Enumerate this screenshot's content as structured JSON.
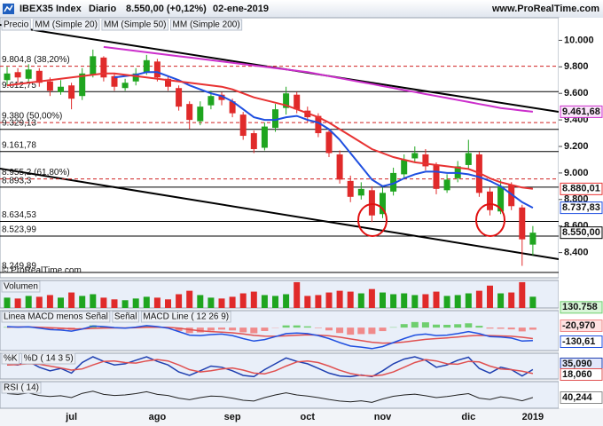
{
  "header": {
    "title": "IBEX35 Index",
    "period": "Diario",
    "quote": "8.550,00 (+0,12%)",
    "date": "02-ene-2019",
    "site": "www.ProRealTime.com"
  },
  "chart_data": [
    {
      "type": "candlestick",
      "legend": "Precio",
      "copyright": "© ProRealTime.com",
      "categories": [
        null,
        null,
        null,
        null,
        null,
        null,
        "jul",
        null,
        null,
        null,
        null,
        null,
        null,
        null,
        "ago",
        null,
        null,
        null,
        null,
        null,
        null,
        "sep",
        null,
        null,
        null,
        null,
        null,
        null,
        "oct",
        null,
        null,
        null,
        null,
        null,
        null,
        "nov",
        null,
        null,
        null,
        null,
        null,
        null,
        null,
        "dic",
        null,
        null,
        null,
        null,
        null,
        "2019"
      ],
      "open": [
        9700,
        9760,
        9710,
        9770,
        9690,
        9610,
        9660,
        9580,
        9740,
        9870,
        9730,
        9640,
        9690,
        9760,
        9840,
        9710,
        9640,
        9520,
        9390,
        9510,
        9590,
        9540,
        9440,
        9300,
        9190,
        9340,
        9490,
        9590,
        9470,
        9430,
        9310,
        9140,
        8940,
        8830,
        8870,
        8690,
        8860,
        8990,
        9110,
        9140,
        9060,
        8870,
        8960,
        9060,
        9140,
        8860,
        8710,
        8910,
        8740,
        8460
      ],
      "high": [
        9800,
        9790,
        9820,
        9790,
        9720,
        9700,
        9680,
        9790,
        9930,
        9880,
        9750,
        9710,
        9790,
        9890,
        9860,
        9730,
        9660,
        9540,
        9540,
        9620,
        9610,
        9560,
        9460,
        9320,
        9380,
        9520,
        9650,
        9610,
        9500,
        9450,
        9330,
        9170,
        8980,
        8930,
        8900,
        8890,
        9040,
        9140,
        9200,
        9180,
        9080,
        8990,
        9090,
        9250,
        9160,
        8890,
        8950,
        8930,
        8760,
        8600
      ],
      "low": [
        9660,
        9680,
        9690,
        9650,
        9580,
        9590,
        9480,
        9550,
        9720,
        9690,
        9620,
        9620,
        9660,
        9740,
        9690,
        9620,
        9470,
        9330,
        9360,
        9480,
        9510,
        9420,
        9250,
        9150,
        9170,
        9310,
        9440,
        9450,
        9380,
        9270,
        9120,
        8920,
        8780,
        8800,
        8630,
        8660,
        8830,
        8960,
        9080,
        9020,
        8840,
        8850,
        8930,
        9030,
        8820,
        8680,
        8690,
        8720,
        8300,
        8380
      ],
      "close": [
        9750,
        9720,
        9780,
        9680,
        9620,
        9650,
        9560,
        9750,
        9880,
        9720,
        9650,
        9680,
        9750,
        9850,
        9720,
        9650,
        9500,
        9400,
        9500,
        9580,
        9550,
        9450,
        9280,
        9180,
        9350,
        9480,
        9600,
        9480,
        9420,
        9300,
        9150,
        8950,
        8820,
        8880,
        8680,
        8850,
        9000,
        9100,
        9150,
        9050,
        8880,
        8950,
        9050,
        9150,
        8850,
        8720,
        8900,
        8750,
        8500,
        8550
      ],
      "last_label": "8.550,00",
      "up_color": "#1fa51f",
      "down_color": "#e02a2a",
      "ylim": [
        8210,
        10170
      ],
      "yticks": [
        {
          "value": 8400,
          "label": "8.400"
        },
        {
          "value": 8600,
          "label": "8.600"
        },
        {
          "value": 8800,
          "label": "8.800"
        },
        {
          "value": 9000,
          "label": "9.000"
        },
        {
          "value": 9200,
          "label": "9.200"
        },
        {
          "value": 9400,
          "label": "9.400"
        },
        {
          "value": 9600,
          "label": "9.600"
        },
        {
          "value": 9800,
          "label": "9.800"
        },
        {
          "value": 10000,
          "label": "10.000"
        }
      ],
      "levels": [
        {
          "value": 9804.8,
          "label": "9.804,8 (38,20%)",
          "style": "dashed"
        },
        {
          "value": 9612.75,
          "label": "9.612,75",
          "style": "solid"
        },
        {
          "value": 9380,
          "label": "9.380 (50,00%)",
          "style": "dashed"
        },
        {
          "value": 9329.13,
          "label": "9.329,13",
          "style": "solid"
        },
        {
          "value": 9161.78,
          "label": "9.161,78",
          "style": "solid"
        },
        {
          "value": 8955.2,
          "label": "8.955,2 (61,80%)",
          "style": "dashed"
        },
        {
          "value": 8893.3,
          "label": "8.893,3",
          "style": "solid"
        },
        {
          "value": 8634.53,
          "label": "8.634,53",
          "style": "solid"
        },
        {
          "value": 8523.99,
          "label": "8.523,99",
          "style": "solid"
        },
        {
          "value": 8249.89,
          "label": "8.249,89",
          "style": "solid"
        }
      ],
      "overlays": [
        {
          "name": "MM (Simple 20)",
          "color": "#1f4fe0",
          "last_label": "8.737,83",
          "values": [
            null,
            null,
            null,
            null,
            null,
            null,
            null,
            null,
            null,
            null,
            9720,
            9730,
            9740,
            9760,
            9760,
            9730,
            9700,
            9660,
            9630,
            9600,
            9580,
            9540,
            9480,
            9420,
            9400,
            9400,
            9420,
            9430,
            9400,
            9380,
            9330,
            9250,
            9150,
            9050,
            8950,
            8900,
            8920,
            8960,
            8990,
            9010,
            9010,
            9000,
            9000,
            8990,
            8970,
            8940,
            8900,
            8840,
            8780,
            8737.83
          ]
        },
        {
          "name": "MM (Simple 50)",
          "color": "#e83232",
          "last_label": "8.880,01",
          "values": [
            9660,
            9670,
            9680,
            9690,
            9700,
            9710,
            9720,
            9730,
            9740,
            9750,
            9750,
            9740,
            9730,
            9720,
            9710,
            9700,
            9690,
            9680,
            9670,
            9660,
            9650,
            9630,
            9600,
            9570,
            9550,
            9530,
            9510,
            9480,
            9450,
            9420,
            9380,
            9330,
            9280,
            9230,
            9180,
            9150,
            9120,
            9100,
            9080,
            9070,
            9060,
            9050,
            9040,
            9030,
            9000,
            8960,
            8930,
            8910,
            8890,
            8880.01
          ]
        },
        {
          "name": "MM (Simple 200)",
          "color": "#cc2fcc",
          "last_label": "9.461,68",
          "values": [
            null,
            null,
            null,
            null,
            null,
            null,
            null,
            null,
            null,
            9950,
            9940,
            9930,
            9920,
            9910,
            9900,
            9890,
            9880,
            9870,
            9860,
            9850,
            9840,
            9830,
            9820,
            9810,
            9800,
            9790,
            9780,
            9770,
            9760,
            9745,
            9730,
            9715,
            9700,
            9685,
            9670,
            9655,
            9640,
            9625,
            9610,
            9595,
            9580,
            9565,
            9550,
            9535,
            9520,
            9505,
            9490,
            9480,
            9470,
            9461.68
          ]
        }
      ]
    },
    {
      "type": "volume",
      "title": "Volumen",
      "last_label": "130.758",
      "ylim": [
        0,
        320000
      ],
      "values": [
        120000,
        110000,
        140000,
        130000,
        150000,
        120000,
        180000,
        140000,
        160000,
        120000,
        100000,
        90000,
        110000,
        130000,
        120000,
        100000,
        160000,
        200000,
        150000,
        120000,
        110000,
        130000,
        170000,
        190000,
        150000,
        140000,
        160000,
        300000,
        140000,
        150000,
        180000,
        200000,
        190000,
        170000,
        220000,
        180000,
        160000,
        170000,
        150000,
        160000,
        190000,
        140000,
        150000,
        170000,
        200000,
        260000,
        170000,
        180000,
        300000,
        130758
      ]
    },
    {
      "type": "macd",
      "ylim": [
        -230,
        170
      ],
      "series": [
        {
          "name": "Linea MACD menos Señal",
          "color": "#6fcf6f",
          "negative_color": "#f08a8a",
          "last_label": "-20,970",
          "values": [
            5,
            -1,
            2,
            -9,
            -19,
            -19,
            -23,
            -2,
            23,
            14,
            3,
            -2,
            6,
            17,
            6,
            -7,
            -34,
            -55,
            -48,
            -30,
            -20,
            -28,
            -47,
            -57,
            -34,
            -3,
            22,
            22,
            13,
            -5,
            -28,
            -54,
            -71,
            -65,
            -64,
            -35,
            4,
            35,
            56,
            53,
            30,
            28,
            34,
            43,
            18,
            -10,
            -12,
            -18,
            -38,
            -20.97
          ]
        },
        {
          "name": "Señal",
          "color": "#e05050",
          "values": [
            5,
            6,
            6,
            4,
            -1,
            -6,
            -12,
            -13,
            -8,
            -4,
            -3,
            -3,
            -1,
            3,
            4,
            2,
            -6,
            -20,
            -32,
            -40,
            -45,
            -52,
            -63,
            -78,
            -86,
            -87,
            -82,
            -77,
            -73,
            -75,
            -82,
            -96,
            -114,
            -130,
            -146,
            -155,
            -154,
            -145,
            -131,
            -118,
            -110,
            -103,
            -94,
            -83,
            -78,
            -80,
            -83,
            -87,
            -97,
            -109.64
          ]
        },
        {
          "name": "MACD Line ( 12 26 9)",
          "color": "#1f4fe0",
          "last_label": "-130,61",
          "values": [
            10,
            5,
            8,
            -5,
            -20,
            -25,
            -35,
            -15,
            15,
            10,
            0,
            -5,
            5,
            20,
            10,
            -5,
            -40,
            -75,
            -80,
            -70,
            -65,
            -80,
            -110,
            -135,
            -120,
            -90,
            -60,
            -55,
            -60,
            -80,
            -110,
            -150,
            -185,
            -195,
            -210,
            -190,
            -150,
            -110,
            -75,
            -65,
            -80,
            -75,
            -60,
            -40,
            -60,
            -90,
            -95,
            -105,
            -135,
            -130.61
          ]
        }
      ]
    },
    {
      "type": "stochastic",
      "ylim": [
        -5,
        105
      ],
      "series": [
        {
          "name": "%K",
          "color": "#1f3fb0",
          "last_label": "35,090",
          "values": [
            60,
            55,
            70,
            45,
            30,
            40,
            20,
            65,
            90,
            70,
            55,
            60,
            75,
            90,
            70,
            55,
            25,
            10,
            30,
            50,
            45,
            30,
            10,
            5,
            35,
            60,
            85,
            70,
            60,
            40,
            20,
            8,
            5,
            12,
            5,
            30,
            60,
            80,
            90,
            75,
            45,
            55,
            75,
            88,
            40,
            20,
            45,
            35,
            8,
            35.09
          ]
        },
        {
          "name": "%D ( 14 3 5)",
          "color": "#e05050",
          "last_label": "18,060",
          "values": [
            55,
            57,
            60,
            58,
            50,
            42,
            33,
            38,
            55,
            70,
            72,
            65,
            63,
            72,
            78,
            72,
            55,
            35,
            25,
            30,
            38,
            42,
            33,
            20,
            17,
            30,
            50,
            68,
            72,
            65,
            50,
            32,
            18,
            10,
            8,
            12,
            25,
            45,
            65,
            78,
            72,
            60,
            58,
            70,
            68,
            50,
            38,
            35,
            28,
            18.06
          ]
        }
      ]
    },
    {
      "type": "rsi",
      "ylim": [
        0,
        100
      ],
      "series": [
        {
          "name": "RSI ( 14)",
          "color": "#222222",
          "last_label": "40,244",
          "values": [
            55,
            52,
            57,
            48,
            44,
            47,
            40,
            56,
            64,
            52,
            48,
            50,
            55,
            62,
            52,
            48,
            38,
            32,
            40,
            46,
            44,
            38,
            30,
            27,
            40,
            50,
            58,
            50,
            46,
            40,
            33,
            27,
            24,
            28,
            22,
            35,
            45,
            50,
            53,
            47,
            40,
            44,
            50,
            55,
            38,
            33,
            43,
            37,
            28,
            40.244
          ]
        }
      ]
    }
  ]
}
